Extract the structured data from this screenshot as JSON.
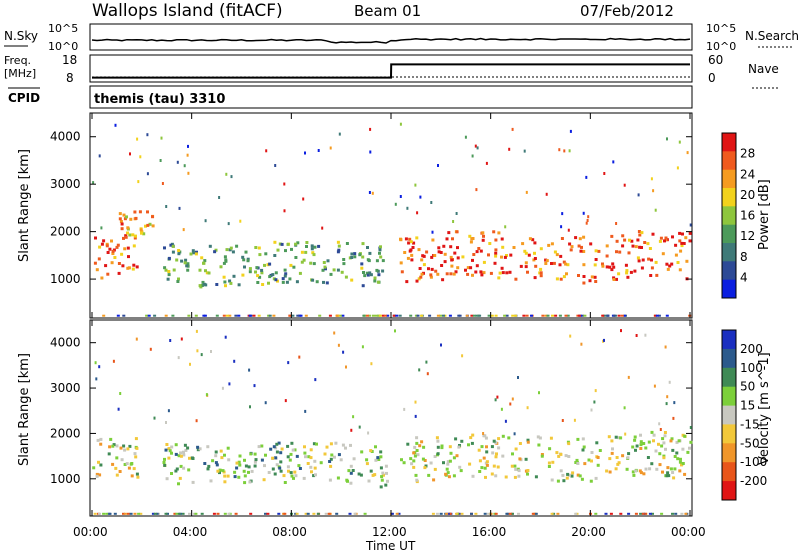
{
  "header": {
    "station": "Wallops Island (fitACF)",
    "beam": "Beam 01",
    "date": "07/Feb/2012"
  },
  "sky_panel": {
    "left_label": "N.Sky",
    "right_label": "N.Search",
    "tick_top": "10^5",
    "tick_bottom": "10^0",
    "right_tick_top": "10^5",
    "right_tick_bottom": "10^0"
  },
  "freq_panel": {
    "left_label_1": "Freq.",
    "left_label_2": "[MHz]",
    "right_label": "Nave",
    "left_ticks": [
      "18",
      "8"
    ],
    "right_ticks": [
      "60",
      "0"
    ],
    "freq_steps": [
      {
        "t": 0.0,
        "f": 10.0
      },
      {
        "t": 12.0,
        "f": 10.0
      },
      {
        "t": 12.01,
        "f": 16.0
      },
      {
        "t": 24.0,
        "f": 16.0
      }
    ]
  },
  "cpid_panel": {
    "label": "CPID",
    "program": "themis (tau) 3310"
  },
  "chart_data": [
    {
      "type": "heatmap",
      "name": "Power",
      "ylabel": "Slant Range [km]",
      "xlabel": "Time UT",
      "x_ticks": [
        "00:00",
        "04:00",
        "08:00",
        "12:00",
        "16:00",
        "20:00",
        "00:00"
      ],
      "y_ticks": [
        "1000",
        "2000",
        "3000",
        "4000"
      ],
      "ylim": [
        180,
        4500
      ],
      "colorbar": {
        "label": "Power [dB]",
        "ticks": [
          "4",
          "8",
          "12",
          "16",
          "20",
          "24",
          "28"
        ],
        "colors": [
          "#0b1fe0",
          "#2d4a96",
          "#3f7a78",
          "#4c9a5a",
          "#8ec63d",
          "#f2d21c",
          "#f59b20",
          "#ef5a1e",
          "#e01515"
        ]
      },
      "echo_bands": [
        {
          "t0": 0.0,
          "t1": 1.8,
          "r0": 1000,
          "r1": 1900,
          "level": 7
        },
        {
          "t0": 1.0,
          "t1": 2.4,
          "r0": 1900,
          "r1": 2400,
          "level": 6
        },
        {
          "t0": 2.8,
          "t1": 11.8,
          "r0": 900,
          "r1": 1800,
          "level": 3
        },
        {
          "t0": 12.3,
          "t1": 24.0,
          "r0": 1000,
          "r1": 2000,
          "level": 7
        }
      ]
    },
    {
      "type": "heatmap",
      "name": "Velocity",
      "ylabel": "Slant Range [km]",
      "xlabel": "Time UT",
      "x_ticks": [
        "00:00",
        "04:00",
        "08:00",
        "12:00",
        "16:00",
        "20:00",
        "00:00"
      ],
      "y_ticks": [
        "1000",
        "2000",
        "3000",
        "4000"
      ],
      "ylim": [
        180,
        4500
      ],
      "colorbar": {
        "label": "Velocity [m s^-1]",
        "ticks": [
          "200",
          "100",
          "50",
          "15",
          "-15",
          "-50",
          "-100",
          "-200"
        ],
        "colors": [
          "#1a2fc0",
          "#2c5a8c",
          "#3f8a55",
          "#7ccf3a",
          "#c8c8c0",
          "#f2c83a",
          "#f0962a",
          "#e8551a",
          "#e01515"
        ]
      },
      "echo_bands": [
        {
          "t0": 0.0,
          "t1": 1.8,
          "r0": 1000,
          "r1": 1900,
          "level": 4
        },
        {
          "t0": 2.8,
          "t1": 11.8,
          "r0": 900,
          "r1": 1800,
          "level": 3
        },
        {
          "t0": 12.3,
          "t1": 24.0,
          "r0": 1000,
          "r1": 2000,
          "level": 4
        }
      ]
    }
  ]
}
